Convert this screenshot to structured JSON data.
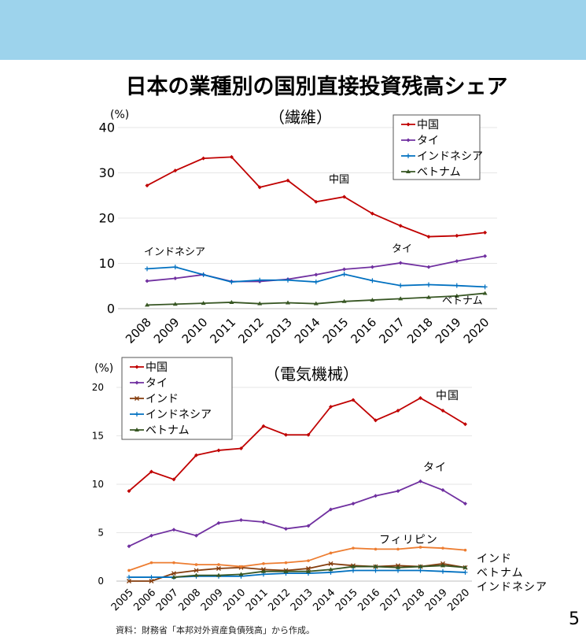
{
  "header": {
    "title": "日本の業種別の国別直接投資残高シェア",
    "page_number": "5",
    "source": "資料：財務省「本邦対外資産負債残高」から作成。",
    "band_color": "#9dd3ec"
  },
  "chart_data": [
    {
      "type": "line",
      "title": "（繊維）",
      "ylabel": "(%)",
      "ylim": [
        0,
        40
      ],
      "yticks": [
        "0",
        "10",
        "20",
        "30",
        "40"
      ],
      "grid": true,
      "legend": "top-right",
      "x": [
        "2008",
        "2009",
        "2010",
        "2011",
        "2012",
        "2013",
        "2014",
        "2015",
        "2016",
        "2017",
        "2018",
        "2019",
        "2020"
      ],
      "series": [
        {
          "name": "中国",
          "color": "#c00000",
          "marker": "diamond",
          "label": "中国",
          "values": [
            27.2,
            30.5,
            33.2,
            33.5,
            26.8,
            28.3,
            23.6,
            24.7,
            21.0,
            18.3,
            15.9,
            16.1,
            16.8
          ]
        },
        {
          "name": "タイ",
          "color": "#7030a0",
          "marker": "diamond",
          "label": "タイ",
          "values": [
            6.1,
            6.7,
            7.5,
            6.0,
            6.0,
            6.5,
            7.5,
            8.7,
            9.2,
            10.1,
            9.2,
            10.5,
            11.6
          ]
        },
        {
          "name": "インドネシア",
          "color": "#0070c0",
          "marker": "plus",
          "label": "インドネシア",
          "values": [
            8.8,
            9.2,
            7.5,
            5.9,
            6.3,
            6.3,
            5.9,
            7.6,
            6.2,
            5.1,
            5.3,
            5.1,
            4.8
          ]
        },
        {
          "name": "ベトナム",
          "color": "#375623",
          "marker": "triangle",
          "label": "ベトナム",
          "values": [
            0.8,
            1.0,
            1.2,
            1.4,
            1.1,
            1.3,
            1.1,
            1.6,
            1.9,
            2.2,
            2.5,
            2.8,
            3.4
          ]
        }
      ]
    },
    {
      "type": "line",
      "title": "（電気機械）",
      "ylabel": "(%)",
      "ylim": [
        0,
        20
      ],
      "yticks": [
        "0",
        "5",
        "10",
        "15",
        "20"
      ],
      "grid": true,
      "legend": "top-left",
      "x": [
        "2005",
        "2006",
        "2007",
        "2008",
        "2009",
        "2010",
        "2011",
        "2012",
        "2013",
        "2014",
        "2015",
        "2016",
        "2017",
        "2018",
        "2019",
        "2020"
      ],
      "series": [
        {
          "name": "中国",
          "color": "#c00000",
          "marker": "diamond",
          "label": "中国",
          "values": [
            9.3,
            11.3,
            10.5,
            13.0,
            13.5,
            13.7,
            16.0,
            15.1,
            15.1,
            18.0,
            18.7,
            16.6,
            17.6,
            18.9,
            17.6,
            16.2
          ]
        },
        {
          "name": "タイ",
          "color": "#7030a0",
          "marker": "diamond",
          "label": "タイ",
          "values": [
            3.6,
            4.7,
            5.3,
            4.7,
            6.0,
            6.3,
            6.1,
            5.4,
            5.7,
            7.4,
            8.0,
            8.8,
            9.3,
            10.3,
            9.4,
            8.0
          ]
        },
        {
          "name": "インド",
          "color": "#843c0c",
          "marker": "x",
          "label": "インド",
          "values": [
            0.0,
            0.0,
            0.8,
            1.1,
            1.3,
            1.4,
            1.2,
            1.1,
            1.3,
            1.8,
            1.6,
            1.5,
            1.6,
            1.5,
            1.8,
            1.4
          ]
        },
        {
          "name": "インドネシア",
          "color": "#0070c0",
          "marker": "plus",
          "label": "インドネシア",
          "values": [
            0.4,
            0.4,
            0.4,
            0.5,
            0.5,
            0.5,
            0.7,
            0.8,
            0.8,
            0.9,
            1.1,
            1.1,
            1.1,
            1.1,
            1.0,
            0.9
          ]
        },
        {
          "name": "ベトナム",
          "color": "#375623",
          "marker": "triangle",
          "label": "ベトナム",
          "values": [
            null,
            null,
            0.4,
            0.6,
            0.6,
            0.7,
            1.0,
            1.0,
            1.0,
            1.2,
            1.5,
            1.5,
            1.4,
            1.5,
            1.6,
            1.4
          ]
        },
        {
          "color": "#ed7d31",
          "marker": "dot",
          "label": "フィリピン",
          "legend": false,
          "values": [
            1.1,
            1.9,
            1.9,
            1.7,
            1.7,
            1.5,
            1.8,
            1.9,
            2.1,
            2.9,
            3.4,
            3.3,
            3.3,
            3.5,
            3.4,
            3.2
          ]
        }
      ]
    }
  ]
}
